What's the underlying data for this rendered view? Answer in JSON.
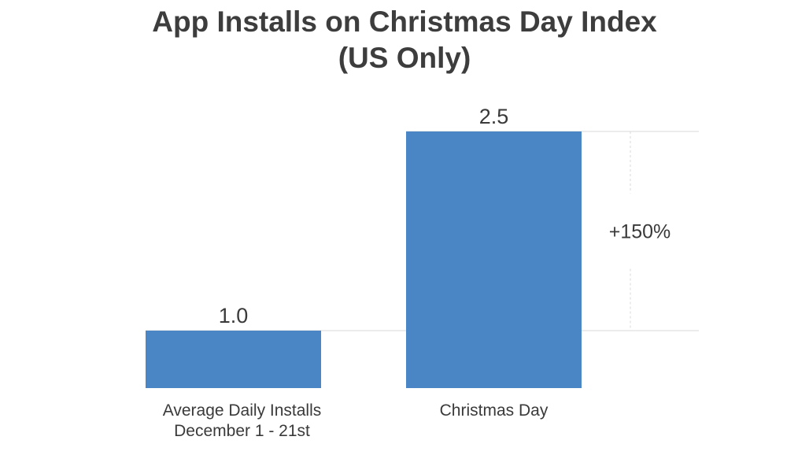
{
  "title": {
    "line1": "App Installs on Christmas Day Index",
    "line2": "(US Only)"
  },
  "chart_data": {
    "type": "bar",
    "title": "App Installs on Christmas Day Index (US Only)",
    "categories": [
      [
        "Average Daily Installs",
        "December 1 - 21st"
      ],
      [
        "Christmas Day"
      ]
    ],
    "values": [
      1.0,
      2.5
    ],
    "value_labels": [
      "1.0",
      "2.5"
    ],
    "bar_color": "#4a86c6",
    "gridline_color": "#d9d9d9",
    "annotation": {
      "text": "+150%",
      "from_value": 1.0,
      "to_value": 2.5
    },
    "xlabel": "",
    "ylabel": "",
    "ylim": [
      0.7,
      2.5
    ],
    "grid": false,
    "legend": "none"
  }
}
